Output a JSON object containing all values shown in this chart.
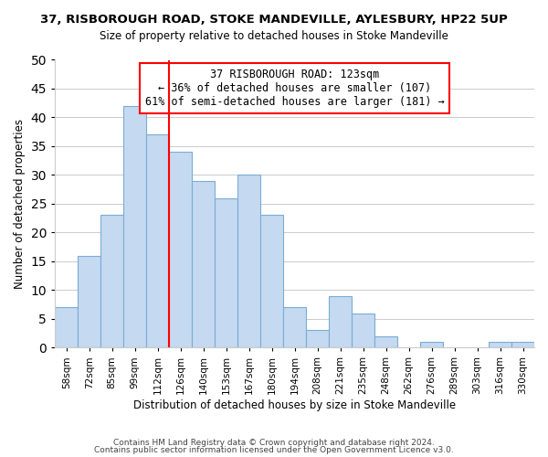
{
  "title1": "37, RISBOROUGH ROAD, STOKE MANDEVILLE, AYLESBURY, HP22 5UP",
  "title2": "Size of property relative to detached houses in Stoke Mandeville",
  "xlabel": "Distribution of detached houses by size in Stoke Mandeville",
  "ylabel": "Number of detached properties",
  "bar_labels": [
    "58sqm",
    "72sqm",
    "85sqm",
    "99sqm",
    "112sqm",
    "126sqm",
    "140sqm",
    "153sqm",
    "167sqm",
    "180sqm",
    "194sqm",
    "208sqm",
    "221sqm",
    "235sqm",
    "248sqm",
    "262sqm",
    "276sqm",
    "289sqm",
    "303sqm",
    "316sqm",
    "330sqm"
  ],
  "bar_values": [
    7,
    16,
    23,
    42,
    37,
    34,
    29,
    26,
    30,
    23,
    7,
    3,
    9,
    6,
    2,
    0,
    1,
    0,
    0,
    1,
    1
  ],
  "bar_color": "#c5d9f0",
  "bar_edge_color": "#7aadd4",
  "vline_index": 4.5,
  "vline_color": "red",
  "ylim": [
    0,
    50
  ],
  "yticks": [
    0,
    5,
    10,
    15,
    20,
    25,
    30,
    35,
    40,
    45,
    50
  ],
  "annotation_box_text": "37 RISBOROUGH ROAD: 123sqm\n← 36% of detached houses are smaller (107)\n61% of semi-detached houses are larger (181) →",
  "footer1": "Contains HM Land Registry data © Crown copyright and database right 2024.",
  "footer2": "Contains public sector information licensed under the Open Government Licence v3.0.",
  "grid_color": "#cccccc",
  "title1_fontsize": 9.5,
  "title2_fontsize": 8.5,
  "tick_fontsize": 7.5,
  "ylabel_fontsize": 8.5,
  "xlabel_fontsize": 8.5,
  "annotation_fontsize": 8.5,
  "footer_fontsize": 6.5
}
